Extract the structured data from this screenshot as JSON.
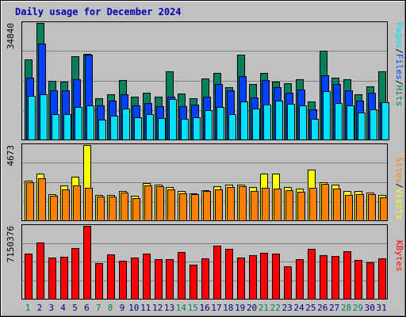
{
  "chart_data": {
    "type": "bar",
    "title": "Daily usage for December 2024",
    "categories": [
      "1",
      "2",
      "3",
      "4",
      "5",
      "6",
      "7",
      "8",
      "9",
      "10",
      "11",
      "12",
      "13",
      "14",
      "15",
      "16",
      "17",
      "18",
      "19",
      "20",
      "21",
      "22",
      "23",
      "24",
      "25",
      "26",
      "27",
      "28",
      "29",
      "30",
      "31"
    ],
    "weekend_days": [
      "1",
      "7",
      "8",
      "14",
      "15",
      "21",
      "22",
      "28",
      "29"
    ],
    "legend_separator": "/",
    "colors": {
      "title": "#0000b0",
      "background_frame": "#c0c0c0",
      "plot_background": "#c0c0c0",
      "grid": "#808080",
      "weekday_label": "#000080",
      "weekend_label": "#00805c",
      "hits": "#00805c",
      "files": "#0040ff",
      "pages": "#00e0ff",
      "visits": "#ffff00",
      "sites": "#ff8000",
      "kbytes": "#ff0000"
    },
    "panels": [
      {
        "y_max_label": "34840",
        "ylim": [
          0,
          34840
        ],
        "legend": [
          "Pages",
          "Files",
          "Hits"
        ],
        "series": [
          {
            "name": "Hits",
            "values": [
              23900,
              34840,
              17500,
              17300,
              24900,
              25700,
              12400,
              13500,
              17700,
              12800,
              14000,
              12900,
              20400,
              13800,
              12400,
              18200,
              19800,
              15700,
              25300,
              16500,
              20000,
              17300,
              16800,
              17900,
              11400,
              26600,
              18400,
              17900,
              13500,
              15800,
              20400
            ]
          },
          {
            "name": "Files",
            "values": [
              18500,
              28700,
              14600,
              14700,
              17900,
              25300,
              10100,
              11700,
              13400,
              10300,
              10900,
              10000,
              12800,
              10000,
              10400,
              12900,
              16500,
              14600,
              19000,
              12500,
              17800,
              15600,
              14000,
              14900,
              8900,
              19200,
              16600,
              14600,
              11700,
              14000,
              11100
            ]
          },
          {
            "name": "Pages",
            "values": [
              13000,
              13500,
              7700,
              7600,
              9600,
              10100,
              5900,
              7000,
              9300,
              6600,
              7600,
              6500,
              12000,
              6200,
              6600,
              8700,
              9800,
              7600,
              11300,
              9200,
              10500,
              11700,
              10600,
              10100,
              6200,
              14400,
              10800,
              10100,
              8000,
              9100,
              11200
            ]
          }
        ]
      },
      {
        "y_max_label": "4673",
        "ylim": [
          0,
          4673
        ],
        "legend": [
          "Sites",
          "Visits"
        ],
        "series": [
          {
            "name": "Visits",
            "values": [
              2440,
              2880,
              1640,
              2180,
              2700,
              4673,
              1560,
              1580,
              1810,
              1540,
              2290,
              2220,
              2070,
              1830,
              1690,
              1890,
              2110,
              2220,
              2200,
              2090,
              2880,
              2920,
              2090,
              1990,
              3130,
              2370,
              2190,
              1840,
              1800,
              1730,
              1560
            ]
          },
          {
            "name": "Sites",
            "values": [
              2350,
              2630,
              1530,
              1940,
              2150,
              2000,
              1480,
              1500,
              1700,
              1360,
              2150,
              2110,
              1930,
              1650,
              1600,
              1800,
              1940,
              2070,
              2120,
              1830,
              2000,
              1990,
              1870,
              1760,
              2040,
              2260,
              1950,
              1580,
              1640,
              1600,
              1410
            ]
          }
        ]
      },
      {
        "y_max_label": "7150376",
        "ylim": [
          0,
          7150376
        ],
        "legend": [
          "KBytes"
        ],
        "series": [
          {
            "name": "KBytes",
            "values": [
              4400000,
              5530000,
              4070000,
              4140000,
              4950000,
              7150376,
              3520000,
              4340000,
              3740000,
              4070000,
              4400000,
              3860000,
              3870000,
              4560000,
              3360000,
              3950000,
              5230000,
              4860000,
              4010000,
              4290000,
              4480000,
              4460000,
              3180000,
              3860000,
              4860000,
              4280000,
              4230000,
              4630000,
              3770000,
              3610000,
              3960000
            ]
          }
        ]
      }
    ]
  }
}
